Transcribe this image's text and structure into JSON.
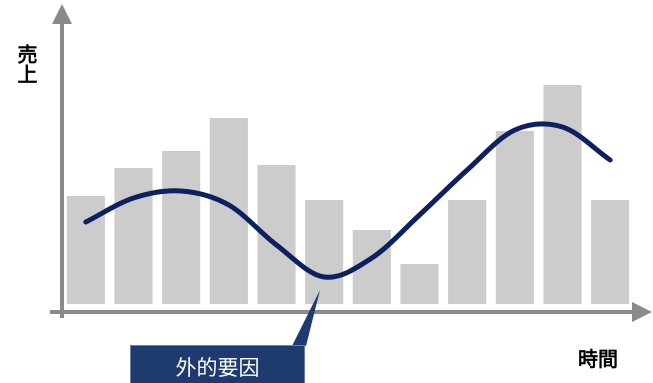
{
  "chart_data": {
    "type": "bar",
    "y_label": "売上",
    "x_label": "時間",
    "annotation": "外的要因",
    "categories": [
      null,
      null,
      null,
      null,
      null,
      null,
      null,
      null,
      null,
      null,
      null,
      null
    ],
    "series": [
      {
        "type": "bar",
        "color": "#cccccc",
        "values": [
          108,
          136,
          153,
          186,
          139,
          104,
          74,
          40,
          104,
          173,
          219,
          104
        ]
      },
      {
        "type": "line",
        "color": "#0d2060",
        "values": [
          82,
          106,
          113,
          99,
          59,
          27,
          46,
          89,
          134,
          174,
          177,
          144
        ]
      }
    ],
    "ylim": [
      0,
      250
    ]
  }
}
